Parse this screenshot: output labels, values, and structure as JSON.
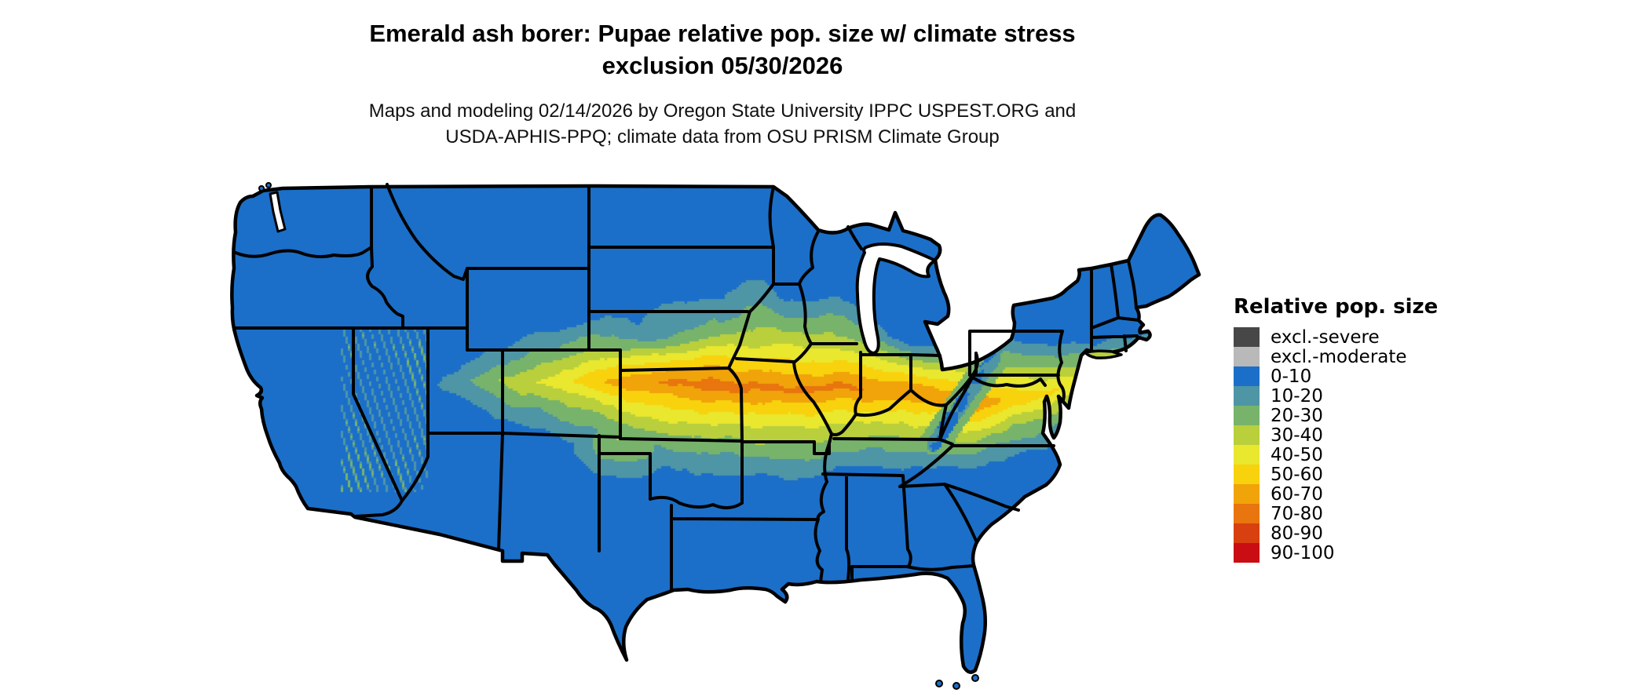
{
  "page": {
    "background": "#ffffff"
  },
  "header": {
    "title_line1": "Emerald ash borer: Pupae relative pop. size w/ climate stress",
    "title_line2": "exclusion 05/30/2026",
    "subtitle_line1": "Maps and modeling 02/14/2026 by Oregon State University IPPC USPEST.ORG and",
    "subtitle_line2": "USDA-APHIS-PPQ; climate data from OSU PRISM Climate Group"
  },
  "legend": {
    "title": "Relative pop. size",
    "items": [
      {
        "label": "excl.-severe",
        "color": "#474747"
      },
      {
        "label": "excl.-moderate",
        "color": "#b9b9b9"
      },
      {
        "label": "0-10",
        "color": "#1b6fc8"
      },
      {
        "label": "10-20",
        "color": "#4e95a5"
      },
      {
        "label": "20-30",
        "color": "#77b36a"
      },
      {
        "label": "30-40",
        "color": "#b9cf3c"
      },
      {
        "label": "40-50",
        "color": "#e9e72e"
      },
      {
        "label": "50-60",
        "color": "#f8d20c"
      },
      {
        "label": "60-70",
        "color": "#f1a30a"
      },
      {
        "label": "70-80",
        "color": "#e8750e"
      },
      {
        "label": "80-90",
        "color": "#d8400f"
      },
      {
        "label": "90-100",
        "color": "#c90d12"
      }
    ]
  },
  "map": {
    "region": "Continental United States",
    "border_color": "#000000",
    "water_color": "#ffffff"
  }
}
